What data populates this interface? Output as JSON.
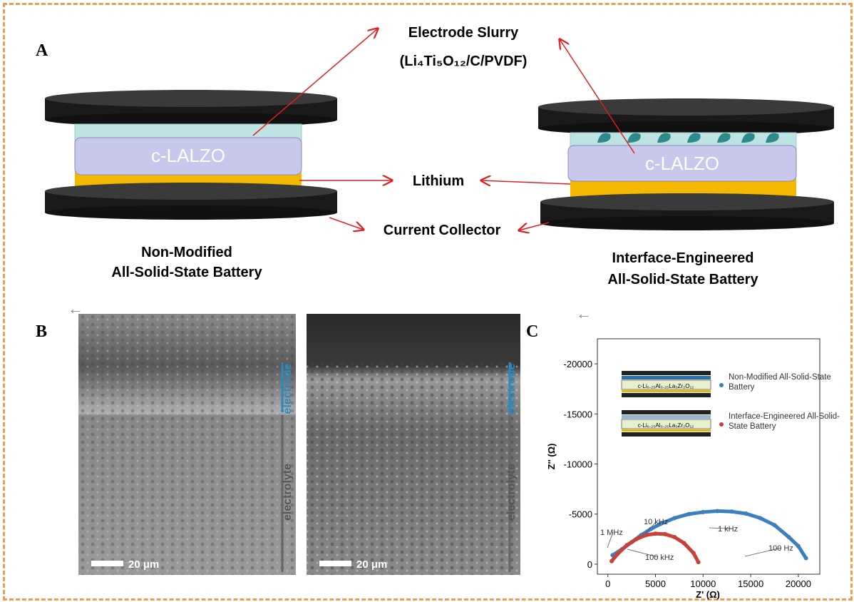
{
  "panels": {
    "a": "A",
    "b": "B",
    "c": "C"
  },
  "schematic": {
    "slurry_title": "Electrode  Slurry",
    "slurry_formula": "(Li₄Ti₅O₁₂/C/PVDF)",
    "electrolyte": "c-LALZO",
    "lithium": "Lithium",
    "collector": "Current Collector",
    "left_caption": [
      "Non-Modified",
      "All-Solid-State Battery"
    ],
    "right_caption": [
      "Interface-Engineered",
      "All-Solid-State Battery"
    ]
  },
  "sem": {
    "electrode": "electrode",
    "electrolyte": "electrolyte",
    "scale_bar": "20 μm"
  },
  "chart_data": {
    "type": "line",
    "xlabel": "Z' (Ω)",
    "ylabel": "Z'' (Ω)",
    "xlim": [
      -1100,
      22250
    ],
    "xticks": [
      0,
      5000,
      10000,
      15000,
      20000
    ],
    "ylim": [
      1000,
      -22500
    ],
    "yticks": [
      -20000,
      -15000,
      -10000,
      -5000,
      0
    ],
    "inset_label": "c-Li₆.₂₅Al₀.₂₅La₃Zr₂O₁₂",
    "series": [
      {
        "name": "Non-Modified All-Solid-State Battery",
        "color": "#3a7fc0",
        "x": [
          500,
          1500,
          2500,
          3500,
          4500,
          5500,
          7000,
          8500,
          10000,
          11500,
          13000,
          14500,
          16000,
          17500,
          19000,
          20000,
          20800
        ],
        "values": [
          -900,
          -1500,
          -2200,
          -2900,
          -3500,
          -4000,
          -4600,
          -5000,
          -5200,
          -5300,
          -5250,
          -5050,
          -4600,
          -3900,
          -2700,
          -1800,
          -600
        ]
      },
      {
        "name": "Interface-Engineered All-Solid-State Battery",
        "color": "#c8403a",
        "x": [
          400,
          1000,
          2000,
          3000,
          4000,
          5000,
          6000,
          7000,
          8000,
          9000,
          9500
        ],
        "values": [
          -300,
          -1000,
          -1900,
          -2500,
          -2900,
          -3050,
          -3000,
          -2700,
          -2100,
          -1100,
          -200
        ]
      }
    ],
    "annotations": [
      "1 MHz",
      "10 kHz",
      "100 kHz",
      "1 kHz",
      "100 Hz"
    ]
  }
}
